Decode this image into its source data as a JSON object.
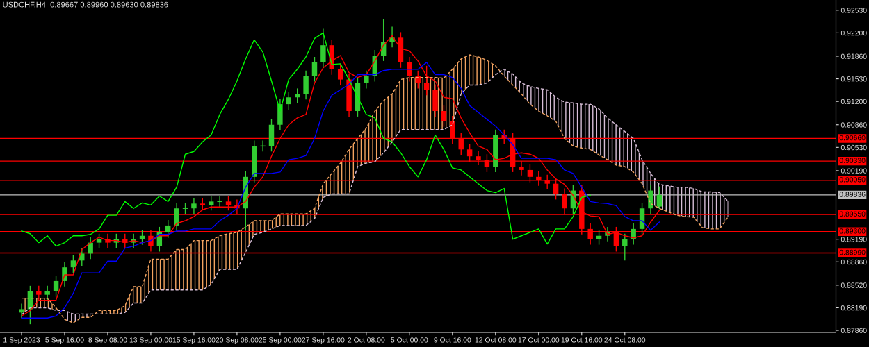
{
  "chart_data": {
    "type": "candlestick",
    "title": "USDCHF,H4  0.89667 0.89960 0.89630 0.89836",
    "categories": [
      "1 Sep 2023",
      null,
      null,
      null,
      null,
      "5 Sep 16:00",
      null,
      null,
      null,
      null,
      "8 Sep 08:00",
      null,
      null,
      null,
      null,
      "13 Sep 00:00",
      null,
      null,
      null,
      null,
      "15 Sep 16:00",
      null,
      null,
      null,
      null,
      "20 Sep 08:00",
      null,
      null,
      null,
      null,
      "25 Sep 00:00",
      null,
      null,
      null,
      null,
      "27 Sep 16:00",
      null,
      null,
      null,
      null,
      "2 Oct 08:00",
      null,
      null,
      null,
      null,
      "5 Oct 00:00",
      null,
      null,
      null,
      null,
      "9 Oct 16:00",
      null,
      null,
      null,
      null,
      "12 Oct 08:00",
      null,
      null,
      null,
      null,
      "17 Oct 00:00",
      null,
      null,
      null,
      null,
      "19 Oct 16:00",
      null,
      null,
      null,
      null,
      "24 Oct 08:00",
      null,
      null,
      null,
      null,
      null,
      null,
      null,
      null,
      null,
      null,
      null,
      null,
      null,
      null,
      null,
      null,
      null,
      null,
      null,
      null,
      null,
      null,
      null,
      null
    ],
    "ohlc": [
      [
        0.8812,
        0.8825,
        0.8804,
        0.8817
      ],
      [
        0.8817,
        0.8851,
        0.8795,
        0.8843
      ],
      [
        0.8843,
        0.8851,
        0.883,
        0.8838
      ],
      [
        0.8838,
        0.8851,
        0.883,
        0.8843
      ],
      [
        0.8843,
        0.8866,
        0.8835,
        0.8858
      ],
      [
        0.8858,
        0.8886,
        0.885,
        0.8878
      ],
      [
        0.8878,
        0.8896,
        0.887,
        0.8888
      ],
      [
        0.8888,
        0.8906,
        0.888,
        0.8898
      ],
      [
        0.8898,
        0.8922,
        0.889,
        0.8914
      ],
      [
        0.8914,
        0.8927,
        0.8906,
        0.8919
      ],
      [
        0.8919,
        0.8927,
        0.8906,
        0.8914
      ],
      [
        0.8914,
        0.8927,
        0.8906,
        0.8919
      ],
      [
        0.8919,
        0.8927,
        0.8906,
        0.8914
      ],
      [
        0.8914,
        0.8927,
        0.8906,
        0.8919
      ],
      [
        0.8919,
        0.8932,
        0.8911,
        0.8924
      ],
      [
        0.8924,
        0.8932,
        0.8901,
        0.8909
      ],
      [
        0.8909,
        0.8937,
        0.8901,
        0.8929
      ],
      [
        0.8929,
        0.8947,
        0.8921,
        0.8939
      ],
      [
        0.8939,
        0.8972,
        0.8931,
        0.8964
      ],
      [
        0.8964,
        0.8972,
        0.8956,
        0.8964
      ],
      [
        0.8964,
        0.8979,
        0.8956,
        0.8971
      ],
      [
        0.8971,
        0.8979,
        0.8961,
        0.8969
      ],
      [
        0.8969,
        0.8982,
        0.8961,
        0.8974
      ],
      [
        0.8974,
        0.8982,
        0.8966,
        0.8974
      ],
      [
        0.8974,
        0.8982,
        0.8961,
        0.8969
      ],
      [
        0.8969,
        0.8977,
        0.8956,
        0.8964
      ],
      [
        0.8964,
        0.9018,
        0.8932,
        0.901
      ],
      [
        0.901,
        0.9063,
        0.9002,
        0.9055
      ],
      [
        0.9055,
        0.9063,
        0.9047,
        0.9055
      ],
      [
        0.9055,
        0.9094,
        0.9047,
        0.9086
      ],
      [
        0.9086,
        0.9124,
        0.9078,
        0.9116
      ],
      [
        0.9116,
        0.9134,
        0.9108,
        0.9126
      ],
      [
        0.9126,
        0.9139,
        0.9118,
        0.9131
      ],
      [
        0.9131,
        0.9165,
        0.9123,
        0.9157
      ],
      [
        0.9157,
        0.9185,
        0.9149,
        0.9177
      ],
      [
        0.9177,
        0.9226,
        0.9169,
        0.9202
      ],
      [
        0.9202,
        0.921,
        0.9159,
        0.9167
      ],
      [
        0.9167,
        0.9175,
        0.9144,
        0.9152
      ],
      [
        0.9152,
        0.916,
        0.9098,
        0.9106
      ],
      [
        0.9106,
        0.9155,
        0.9098,
        0.9147
      ],
      [
        0.9147,
        0.9165,
        0.9139,
        0.9157
      ],
      [
        0.9157,
        0.9195,
        0.9149,
        0.9187
      ],
      [
        0.9187,
        0.924,
        0.9179,
        0.9207
      ],
      [
        0.9207,
        0.9229,
        0.9199,
        0.9213
      ],
      [
        0.9213,
        0.9221,
        0.9169,
        0.9177
      ],
      [
        0.9177,
        0.9185,
        0.9149,
        0.9157
      ],
      [
        0.9157,
        0.9165,
        0.9139,
        0.9147
      ],
      [
        0.9147,
        0.9172,
        0.9129,
        0.9137
      ],
      [
        0.9137,
        0.9145,
        0.9098,
        0.9106
      ],
      [
        0.9106,
        0.9114,
        0.9083,
        0.9091
      ],
      [
        0.9091,
        0.9099,
        0.9058,
        0.9066
      ],
      [
        0.9066,
        0.9074,
        0.9042,
        0.905
      ],
      [
        0.905,
        0.9058,
        0.9032,
        0.904
      ],
      [
        0.904,
        0.9048,
        0.9027,
        0.9035
      ],
      [
        0.9035,
        0.9043,
        0.9017,
        0.9025
      ],
      [
        0.9025,
        0.9079,
        0.9017,
        0.9071
      ],
      [
        0.9071,
        0.9079,
        0.9058,
        0.9066
      ],
      [
        0.9066,
        0.9074,
        0.9017,
        0.9025
      ],
      [
        0.9025,
        0.9033,
        0.9012,
        0.902
      ],
      [
        0.902,
        0.9028,
        0.9002,
        0.901
      ],
      [
        0.901,
        0.9018,
        0.8997,
        0.9005
      ],
      [
        0.9005,
        0.9013,
        0.8992,
        0.9
      ],
      [
        0.9,
        0.9008,
        0.8977,
        0.8985
      ],
      [
        0.8985,
        0.8993,
        0.8955,
        0.8964
      ],
      [
        0.8964,
        0.8998,
        0.8956,
        0.899
      ],
      [
        0.899,
        0.8998,
        0.8926,
        0.8934
      ],
      [
        0.8934,
        0.8942,
        0.8911,
        0.8919
      ],
      [
        0.8919,
        0.8932,
        0.8911,
        0.8924
      ],
      [
        0.8924,
        0.8937,
        0.8916,
        0.8929
      ],
      [
        0.8929,
        0.8937,
        0.8901,
        0.8909
      ],
      [
        0.8909,
        0.8927,
        0.8888,
        0.8919
      ],
      [
        0.8919,
        0.8942,
        0.8911,
        0.8934
      ],
      [
        0.8934,
        0.8972,
        0.8926,
        0.8964
      ],
      [
        0.8964,
        0.8998,
        0.8956,
        0.899
      ],
      [
        0.89667,
        0.8996,
        0.8963,
        0.89836
      ],
      null,
      null,
      null,
      null,
      null,
      null,
      null,
      null,
      null,
      null,
      null,
      null,
      null,
      null,
      null,
      null,
      null,
      null,
      null,
      null
    ],
    "colors": [
      "#32cd32",
      "#32cd32",
      "#ff0000",
      "#32cd32",
      "#32cd32",
      "#32cd32",
      "#32cd32",
      "#32cd32",
      "#32cd32",
      "#32cd32",
      "#ff0000",
      "#32cd32",
      "#ff0000",
      "#32cd32",
      "#32cd32",
      "#ff0000",
      "#32cd32",
      "#32cd32",
      "#32cd32",
      "#32cd32",
      "#32cd32",
      "#ff0000",
      "#32cd32",
      "#32cd32",
      "#ff0000",
      "#ff0000",
      "#32cd32",
      "#32cd32",
      "#32cd32",
      "#32cd32",
      "#32cd32",
      "#32cd32",
      "#32cd32",
      "#32cd32",
      "#32cd32",
      "#32cd32",
      "#ff0000",
      "#ff0000",
      "#ff0000",
      "#32cd32",
      "#32cd32",
      "#32cd32",
      "#32cd32",
      "#32cd32",
      "#ff0000",
      "#ff0000",
      "#ff0000",
      "#ff0000",
      "#ff0000",
      "#ff0000",
      "#ff0000",
      "#ff0000",
      "#ff0000",
      "#ff0000",
      "#ff0000",
      "#32cd32",
      "#ff0000",
      "#ff0000",
      "#ff0000",
      "#ff0000",
      "#ff0000",
      "#ff0000",
      "#ff0000",
      "#ff0000",
      "#32cd32",
      "#ff0000",
      "#ff0000",
      "#32cd32",
      "#32cd32",
      "#ff0000",
      "#32cd32",
      "#32cd32",
      "#32cd32",
      "#32cd32",
      "#32cd32",
      null,
      null,
      null,
      null,
      null,
      null,
      null,
      null,
      null,
      null,
      null,
      null,
      null,
      null,
      null,
      null,
      null,
      null,
      null,
      null
    ],
    "series": [
      {
        "type": "line",
        "color": "#ff0000",
        "line_style": "solid",
        "values": [
          0.8807,
          0.8815,
          0.883,
          0.883,
          0.883,
          0.8867,
          0.8867,
          0.8904,
          0.8914,
          0.8922,
          0.8917,
          0.8917,
          0.8914,
          0.8917,
          0.8914,
          0.8917,
          0.8924,
          0.8924,
          0.8942,
          0.8946,
          0.8952,
          0.8962,
          0.8966,
          0.8966,
          0.8966,
          0.8966,
          0.8974,
          0.8995,
          0.901,
          0.904,
          0.9066,
          0.9086,
          0.9096,
          0.9101,
          0.9147,
          0.9169,
          0.9179,
          0.9187,
          0.9162,
          0.9155,
          0.9159,
          0.9179,
          0.9202,
          0.9216,
          0.9197,
          0.9194,
          0.9179,
          0.9157,
          0.915,
          0.9126,
          0.9124,
          0.9096,
          0.9074,
          0.9055,
          0.905,
          0.9035,
          0.9037,
          0.9043,
          0.9045,
          0.9043,
          0.9037,
          0.902,
          0.9007,
          0.8999,
          0.8983,
          0.8959,
          0.8953,
          0.8952,
          0.8926,
          0.8929,
          0.8924,
          0.8921,
          0.8924,
          0.8944,
          0.8961,
          null,
          null,
          null,
          null,
          null,
          null,
          null,
          null,
          null,
          null,
          null,
          null,
          null,
          null,
          null,
          null,
          null,
          null,
          null,
          null
        ]
      },
      {
        "type": "line",
        "color": "#0000ff",
        "line_style": "solid",
        "values": [
          0.8804,
          0.8804,
          0.8804,
          0.8804,
          0.8807,
          0.8819,
          0.884,
          0.887,
          0.887,
          0.887,
          0.8887,
          0.8887,
          0.8906,
          0.8909,
          0.8914,
          0.8917,
          0.8926,
          0.8926,
          0.8931,
          0.8931,
          0.8934,
          0.8934,
          0.8934,
          0.8946,
          0.8954,
          0.8964,
          0.8995,
          0.9015,
          0.9015,
          0.9015,
          0.9017,
          0.9035,
          0.9037,
          0.9041,
          0.9066,
          0.9106,
          0.9129,
          0.9137,
          0.9145,
          0.9159,
          0.9159,
          0.9159,
          0.9165,
          0.9167,
          0.9167,
          0.9167,
          0.9167,
          0.9177,
          0.9159,
          0.9159,
          0.9155,
          0.9139,
          0.9114,
          0.9104,
          0.9094,
          0.9084,
          0.9071,
          0.9057,
          0.9037,
          0.9037,
          0.9037,
          0.9037,
          0.9035,
          0.902,
          0.9015,
          0.8995,
          0.8974,
          0.8972,
          0.8971,
          0.8968,
          0.8952,
          0.8946,
          0.8946,
          0.8932,
          0.8944,
          null,
          null,
          null,
          null,
          null,
          null,
          null,
          null,
          null,
          null,
          null,
          null,
          null,
          null,
          null,
          null,
          null,
          null,
          null,
          null
        ]
      },
      {
        "type": "line",
        "color": "#00ff00",
        "line_style": "solid",
        "values": [
          0.8931,
          0.8927,
          0.8914,
          0.8924,
          0.8909,
          0.8914,
          0.8924,
          0.8924,
          0.8926,
          0.8934,
          0.8954,
          0.8954,
          0.8974,
          0.8964,
          0.8972,
          0.8969,
          0.8982,
          0.8974,
          0.8995,
          0.9043,
          0.9047,
          0.9061,
          0.9071,
          0.9101,
          0.9123,
          0.915,
          0.9182,
          0.921,
          0.9192,
          0.915,
          0.9106,
          0.9152,
          0.9167,
          0.9185,
          0.9212,
          0.922,
          0.9174,
          0.9175,
          0.9152,
          0.9126,
          0.9101,
          0.9096,
          0.9066,
          0.9061,
          0.9045,
          0.9025,
          0.901,
          0.9035,
          0.9071,
          0.905,
          0.9023,
          0.902,
          0.901,
          0.9,
          0.899,
          0.8987,
          0.8993,
          0.8919,
          0.8924,
          0.8929,
          0.8934,
          0.8912,
          0.8934,
          0.8934,
          0.8952,
          0.898,
          0.8983,
          null,
          null,
          null,
          null,
          null,
          null,
          null,
          null,
          null,
          null,
          null,
          null,
          null,
          null,
          null,
          null,
          null,
          null,
          null,
          null,
          null,
          null,
          null,
          null,
          null,
          null,
          null,
          null
        ]
      },
      {
        "type": "line",
        "color": "#f4a460",
        "line_style": "dashed",
        "upper": [
          0.8833,
          0.8833,
          0.8833,
          0.8833,
          0.8819,
          null,
          null,
          null,
          null,
          0.8815,
          0.8815,
          0.8815,
          0.8822,
          0.885,
          0.885,
          0.889,
          0.889,
          0.889,
          0.8904,
          0.8904,
          0.8917,
          0.8917,
          0.8917,
          0.8924,
          0.8927,
          0.8929,
          0.8937,
          0.8946,
          0.8946,
          0.8946,
          0.8956,
          0.8956,
          0.8956,
          0.8956,
          0.8964,
          0.9,
          0.9015,
          0.903,
          0.905,
          0.9066,
          0.9081,
          0.9106,
          0.9121,
          0.9131,
          0.9152,
          0.9155,
          0.9155,
          0.9155,
          0.9155,
          0.9154,
          0.9167,
          0.9182,
          0.9188,
          0.9185,
          0.918,
          0.9172,
          null,
          null,
          null,
          null,
          null,
          null,
          null,
          null,
          null,
          null,
          null,
          null,
          null,
          null,
          null,
          null,
          null,
          null,
          null,
          null,
          null,
          null,
          null,
          null,
          null,
          null,
          null,
          null,
          null,
          null,
          null,
          null,
          null,
          null,
          null,
          null,
          null,
          null,
          null
        ],
        "lower": [
          0.8809,
          0.8819,
          0.8819,
          0.8819,
          0.8815,
          null,
          null,
          null,
          null,
          0.881,
          0.881,
          0.881,
          0.8812,
          0.8826,
          0.8826,
          0.8845,
          0.8845,
          0.8845,
          0.8845,
          0.8845,
          0.8845,
          0.8845,
          0.8853,
          0.8875,
          0.8875,
          0.8875,
          0.89,
          0.8926,
          0.8929,
          0.8934,
          0.8939,
          0.8939,
          0.8939,
          0.8939,
          0.8949,
          0.898,
          0.8985,
          0.8985,
          0.8985,
          0.9025,
          0.903,
          0.9032,
          0.9045,
          0.9061,
          0.9079,
          0.9079,
          0.9079,
          0.9079,
          0.9079,
          0.9079,
          0.9086,
          0.9131,
          0.9144,
          0.9144,
          0.9147,
          0.9159,
          null,
          null,
          null,
          null,
          null,
          null,
          null,
          null,
          null,
          null,
          null,
          null,
          null,
          null,
          null,
          null,
          null,
          null,
          null,
          null,
          null,
          null,
          null,
          null,
          null,
          null,
          null,
          null,
          null,
          null,
          null,
          null,
          null,
          null,
          null,
          null,
          null,
          null,
          null
        ],
        "values": [
          0.8833,
          0.8833,
          0.8833,
          0.8833,
          0.8819,
          0.8802,
          0.8797,
          0.8805,
          0.8805,
          0.8815,
          0.8815,
          0.8815,
          0.8822,
          0.885,
          0.885,
          0.889,
          0.889,
          0.889,
          0.8904,
          0.8904,
          0.8917,
          0.8917,
          0.8917,
          0.8924,
          0.8927,
          0.8929,
          0.8937,
          0.8946,
          0.8946,
          0.8946,
          0.8956,
          0.8956,
          0.8956,
          0.8956,
          0.8964,
          0.9,
          0.9015,
          0.903,
          0.905,
          0.9066,
          0.9081,
          0.9106,
          0.9121,
          0.9131,
          0.9152,
          0.9155,
          0.9155,
          0.9155,
          0.9155,
          0.9154,
          0.9167,
          0.9182,
          0.9188,
          0.9185,
          0.918,
          0.9172,
          0.9157,
          0.9144,
          0.9131,
          0.9116,
          0.9106,
          0.9099,
          0.9091,
          0.9066,
          0.9055,
          0.9052,
          0.905,
          0.9042,
          0.9035,
          0.9027,
          0.9025,
          0.9017,
          0.9,
          0.8971,
          0.8964,
          0.8959,
          0.8954,
          0.8952,
          0.8951,
          0.8936,
          0.8934,
          0.8934,
          0.8952,
          null,
          null,
          null,
          null,
          null,
          null,
          null,
          null,
          null,
          null,
          null,
          null
        ]
      },
      {
        "type": "line",
        "color": "#d8bfd8",
        "line_style": "dashed",
        "upper": [
          null,
          null,
          null,
          null,
          null,
          0.8815,
          0.881,
          0.881,
          0.881,
          null,
          null,
          null,
          null,
          null,
          null,
          null,
          null,
          null,
          null,
          null,
          null,
          null,
          null,
          null,
          null,
          null,
          null,
          null,
          null,
          null,
          null,
          null,
          null,
          null,
          null,
          null,
          null,
          null,
          null,
          null,
          null,
          null,
          null,
          null,
          null,
          null,
          null,
          null,
          null,
          null,
          null,
          null,
          null,
          null,
          null,
          null,
          0.9167,
          0.916,
          0.9147,
          0.9142,
          0.9139,
          0.9137,
          0.9126,
          0.9119,
          0.9118,
          0.9116,
          0.9116,
          0.9109,
          0.9096,
          0.9086,
          0.9076,
          0.9066,
          0.9035,
          0.9015,
          0.8999,
          0.8997,
          0.8995,
          0.8995,
          0.8993,
          0.8988,
          0.8988,
          0.8987,
          0.8974,
          null,
          null,
          null,
          null,
          null,
          null,
          null,
          null,
          null,
          null,
          null,
          null
        ],
        "lower": [
          null,
          null,
          null,
          null,
          null,
          0.8802,
          0.8797,
          0.8805,
          0.8805,
          null,
          null,
          null,
          null,
          null,
          null,
          null,
          null,
          null,
          null,
          null,
          null,
          null,
          null,
          null,
          null,
          null,
          null,
          null,
          null,
          null,
          null,
          null,
          null,
          null,
          null,
          null,
          null,
          null,
          null,
          null,
          null,
          null,
          null,
          null,
          null,
          null,
          null,
          null,
          null,
          null,
          null,
          null,
          null,
          null,
          null,
          null,
          0.9157,
          0.9144,
          0.9131,
          0.9116,
          0.9106,
          0.9099,
          0.9091,
          0.9066,
          0.9055,
          0.9052,
          0.905,
          0.9042,
          0.9035,
          0.9027,
          0.9025,
          0.9017,
          0.9,
          0.8971,
          0.8964,
          0.8959,
          0.8954,
          0.8952,
          0.8951,
          0.8936,
          0.8934,
          0.8934,
          0.8952,
          null,
          null,
          null,
          null,
          null,
          null,
          null,
          null,
          null,
          null,
          null,
          null
        ],
        "values": [
          0.8809,
          0.8819,
          0.8819,
          0.8819,
          0.8815,
          0.8815,
          0.881,
          0.881,
          0.881,
          0.881,
          0.881,
          0.881,
          0.8812,
          0.8826,
          0.8826,
          0.8845,
          0.8845,
          0.8845,
          0.8845,
          0.8845,
          0.8845,
          0.8845,
          0.8853,
          0.8875,
          0.8875,
          0.8875,
          0.89,
          0.8926,
          0.8929,
          0.8934,
          0.8939,
          0.8939,
          0.8939,
          0.8939,
          0.8949,
          0.898,
          0.8985,
          0.8985,
          0.8985,
          0.9025,
          0.903,
          0.9032,
          0.9045,
          0.9061,
          0.9079,
          0.9079,
          0.9079,
          0.9079,
          0.9079,
          0.9079,
          0.9086,
          0.9131,
          0.9144,
          0.9144,
          0.9147,
          0.9159,
          0.9167,
          0.916,
          0.9147,
          0.9142,
          0.9139,
          0.9137,
          0.9126,
          0.9119,
          0.9118,
          0.9116,
          0.9116,
          0.9109,
          0.9096,
          0.9086,
          0.9076,
          0.9066,
          0.9035,
          0.9015,
          0.8999,
          0.8997,
          0.8995,
          0.8995,
          0.8993,
          0.8988,
          0.8988,
          0.8987,
          0.8974,
          null,
          null,
          null,
          null,
          null,
          null,
          null,
          null,
          null,
          null,
          null,
          null
        ]
      }
    ],
    "ylim": [
      0.8783,
      0.9268
    ],
    "yticks": [
      {
        "value": 0.8786,
        "label": "0.87860"
      },
      {
        "value": 0.8819,
        "label": "0.88190"
      },
      {
        "value": 0.8852,
        "label": "0.88520"
      },
      {
        "value": 0.8886,
        "label": "0.88860"
      },
      {
        "value": 0.8919,
        "label": "0.89190"
      },
      {
        "value": 0.9019,
        "label": "0.90190"
      },
      {
        "value": 0.9053,
        "label": "0.90530"
      },
      {
        "value": 0.9086,
        "label": "0.90860"
      },
      {
        "value": 0.912,
        "label": "0.91200"
      },
      {
        "value": 0.9153,
        "label": "0.91530"
      },
      {
        "value": 0.9186,
        "label": "0.91860"
      },
      {
        "value": 0.922,
        "label": "0.92200"
      },
      {
        "value": 0.9253,
        "label": "0.92530"
      }
    ],
    "ref_lines": [
      {
        "axis": "y",
        "value": 0.9066,
        "label": "0.90660",
        "color": "#ff0000"
      },
      {
        "axis": "y",
        "value": 0.9033,
        "label": "0.90330",
        "color": "#ff0000"
      },
      {
        "axis": "y",
        "value": 0.9005,
        "label": "0.90050",
        "color": "#ff0000"
      },
      {
        "axis": "y",
        "value": 0.89836,
        "label": "0.89836",
        "color": "#c0c0c0"
      },
      {
        "axis": "y",
        "value": 0.8955,
        "label": "0.89550",
        "color": "#ff0000"
      },
      {
        "axis": "y",
        "value": 0.893,
        "label": "0.89300",
        "color": "#ff0000"
      },
      {
        "axis": "y",
        "value": 0.8899,
        "label": "0.88990",
        "color": "#ff0000"
      }
    ],
    "grid": false,
    "legend": false
  }
}
